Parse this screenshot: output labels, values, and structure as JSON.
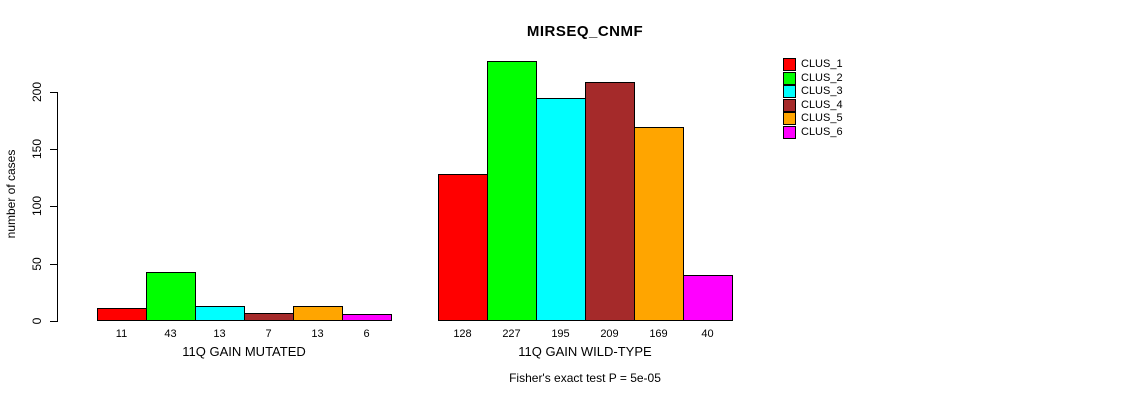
{
  "chart_data": {
    "type": "bar",
    "title": "MIRSEQ_CNMF",
    "ylabel": "number of cases",
    "xlabel": "",
    "yticks": [
      0,
      50,
      100,
      150,
      200
    ],
    "ylim": [
      0,
      230
    ],
    "grid": false,
    "legend_position": "right",
    "groups": [
      {
        "label": "11Q GAIN MUTATED",
        "values": [
          11,
          43,
          13,
          7,
          13,
          6
        ]
      },
      {
        "label": "11Q GAIN WILD-TYPE",
        "values": [
          128,
          227,
          195,
          209,
          169,
          40
        ]
      }
    ],
    "series": [
      {
        "name": "CLUS_1",
        "color": "#ff0000"
      },
      {
        "name": "CLUS_2",
        "color": "#00ff00"
      },
      {
        "name": "CLUS_3",
        "color": "#00ffff"
      },
      {
        "name": "CLUS_4",
        "color": "#a52a2a"
      },
      {
        "name": "CLUS_5",
        "color": "#ffa500"
      },
      {
        "name": "CLUS_6",
        "color": "#ff00ff"
      }
    ],
    "annotation": "Fisher's exact test P = 5e-05"
  }
}
